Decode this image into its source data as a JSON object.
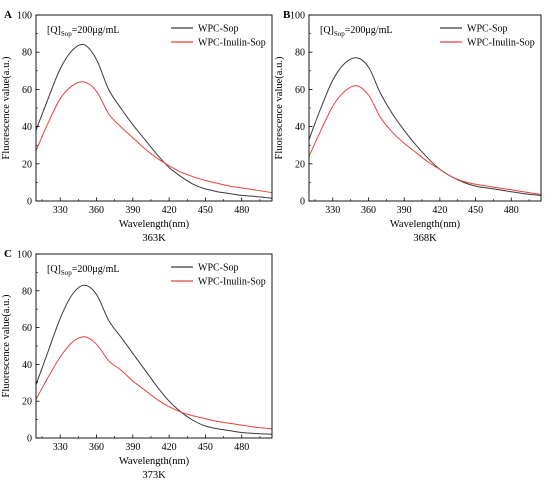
{
  "chart_data": [
    {
      "type": "line",
      "panel_label": "A",
      "condition_label_main": "[Q]",
      "condition_label_sub": "Sop",
      "condition_label_value": "=200μg/mL",
      "xlabel": "Wavelength(nm)",
      "ylabel": "Fluorescence value(a.u.)",
      "caption": "363K",
      "xlim": [
        310,
        505
      ],
      "ylim": [
        0,
        100
      ],
      "xticks": [
        330,
        360,
        390,
        420,
        450,
        480
      ],
      "yticks": [
        0,
        20,
        40,
        60,
        80,
        100
      ],
      "legend_position": "top-right",
      "series": [
        {
          "name": "WPC-Sop",
          "color": "#3a3a3a",
          "x": [
            310,
            320,
            330,
            340,
            350,
            360,
            370,
            380,
            390,
            400,
            410,
            420,
            430,
            440,
            450,
            460,
            470,
            480,
            490,
            505
          ],
          "y": [
            38,
            55,
            71,
            81,
            84,
            76,
            60,
            50,
            41,
            33,
            25,
            18,
            13,
            9,
            6.5,
            5,
            4,
            3,
            2.5,
            1.5
          ]
        },
        {
          "name": "WPC-Inulin-Sop",
          "color": "#e8433b",
          "x": [
            310,
            320,
            330,
            340,
            350,
            360,
            370,
            380,
            390,
            400,
            410,
            420,
            430,
            440,
            450,
            460,
            470,
            480,
            490,
            505
          ],
          "y": [
            27,
            42,
            55,
            62,
            64,
            59,
            47,
            40,
            34,
            28,
            23,
            19,
            15.5,
            13,
            11,
            9.5,
            8,
            7,
            6,
            4.5
          ]
        }
      ]
    },
    {
      "type": "line",
      "panel_label": "B",
      "condition_label_main": "[Q]",
      "condition_label_sub": "Sop",
      "condition_label_value": "=200μg/mL",
      "xlabel": "Wavelength(nm)",
      "ylabel": "Fluorescence value(a.u.)",
      "caption": "368K",
      "xlim": [
        310,
        505
      ],
      "ylim": [
        0,
        100
      ],
      "xticks": [
        330,
        360,
        390,
        420,
        450,
        480
      ],
      "yticks": [
        0,
        20,
        40,
        60,
        80,
        100
      ],
      "legend_position": "top-right",
      "series": [
        {
          "name": "WPC-Sop",
          "color": "#3a3a3a",
          "x": [
            310,
            320,
            330,
            340,
            350,
            360,
            370,
            380,
            390,
            400,
            410,
            420,
            430,
            440,
            450,
            460,
            470,
            480,
            490,
            505
          ],
          "y": [
            33,
            50,
            65,
            74,
            77,
            72,
            58,
            47,
            38,
            30,
            23,
            17,
            13,
            10,
            8,
            7,
            6,
            5,
            4,
            3
          ]
        },
        {
          "name": "WPC-Inulin-Sop",
          "color": "#e8433b",
          "x": [
            310,
            320,
            330,
            340,
            350,
            360,
            370,
            380,
            390,
            400,
            410,
            420,
            430,
            440,
            450,
            460,
            470,
            480,
            490,
            505
          ],
          "y": [
            24,
            38,
            51,
            59,
            62,
            57,
            45,
            37,
            31,
            26,
            21,
            17,
            13,
            10.5,
            9,
            8,
            7,
            6,
            5,
            3.5
          ]
        }
      ]
    },
    {
      "type": "line",
      "panel_label": "C",
      "condition_label_main": "[Q]",
      "condition_label_sub": "Sop",
      "condition_label_value": "=200μg/mL",
      "xlabel": "Wavelength(nm)",
      "ylabel": "Fluorescence value(a.u.)",
      "caption": "373K",
      "xlim": [
        310,
        505
      ],
      "ylim": [
        0,
        100
      ],
      "xticks": [
        330,
        360,
        390,
        420,
        450,
        480
      ],
      "yticks": [
        0,
        20,
        40,
        60,
        80,
        100
      ],
      "legend_position": "top-right",
      "series": [
        {
          "name": "WPC-Sop",
          "color": "#3a3a3a",
          "x": [
            310,
            320,
            330,
            340,
            350,
            360,
            370,
            380,
            390,
            400,
            410,
            420,
            430,
            440,
            450,
            460,
            470,
            480,
            490,
            505
          ],
          "y": [
            29,
            47,
            65,
            78,
            83,
            78,
            64,
            55,
            46,
            37,
            28,
            20,
            14,
            9.5,
            6.5,
            5,
            4,
            3,
            2.5,
            2
          ]
        },
        {
          "name": "WPC-Inulin-Sop",
          "color": "#e8433b",
          "x": [
            310,
            320,
            330,
            340,
            350,
            360,
            370,
            380,
            390,
            400,
            410,
            420,
            430,
            440,
            450,
            460,
            470,
            480,
            490,
            505
          ],
          "y": [
            21,
            33,
            44,
            52,
            55,
            51,
            42,
            37,
            31,
            26,
            21,
            17,
            14,
            12,
            10.5,
            9,
            8,
            7,
            6,
            5
          ]
        }
      ]
    }
  ]
}
